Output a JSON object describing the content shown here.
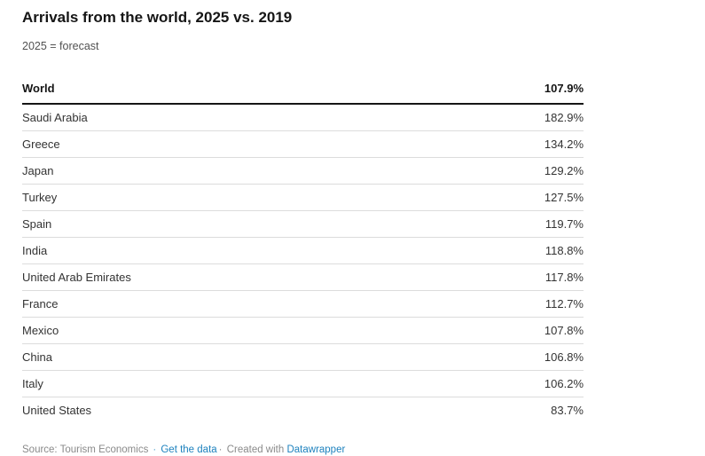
{
  "header": {
    "title": "Arrivals from the world, 2025 vs. 2019",
    "subtitle": "2025 = forecast"
  },
  "table": {
    "header": {
      "label": "World",
      "value": "107.9%"
    },
    "rows": [
      {
        "country": "Saudi Arabia",
        "value": "182.9%"
      },
      {
        "country": "Greece",
        "value": "134.2%"
      },
      {
        "country": "Japan",
        "value": "129.2%"
      },
      {
        "country": "Turkey",
        "value": "127.5%"
      },
      {
        "country": "Spain",
        "value": "119.7%"
      },
      {
        "country": "India",
        "value": "118.8%"
      },
      {
        "country": "United Arab Emirates",
        "value": "117.8%"
      },
      {
        "country": "France",
        "value": "112.7%"
      },
      {
        "country": "Mexico",
        "value": "107.8%"
      },
      {
        "country": "China",
        "value": "106.8%"
      },
      {
        "country": "Italy",
        "value": "106.2%"
      },
      {
        "country": "United States",
        "value": "83.7%"
      }
    ]
  },
  "footer": {
    "source": "Source: Tourism Economics",
    "sep1": "·",
    "get_data_label": "Get the data",
    "sep2": "·",
    "created_with": "Created with",
    "datawrapper_label": "Datawrapper"
  },
  "colors": {
    "link_blue": "#1e82be",
    "separator_blue": "#55a3cd",
    "header_border": "#161616",
    "row_border": "#dcdcdc",
    "title_text": "#151515",
    "body_text": "#333333",
    "footer_gray": "#8a8a8a",
    "background": "#ffffff"
  },
  "chart_data": {
    "type": "table",
    "title": "Arrivals from the world, 2025 vs. 2019",
    "subtitle": "2025 = forecast",
    "header_row": {
      "label": "World",
      "value_pct": 107.9
    },
    "categories": [
      "Saudi Arabia",
      "Greece",
      "Japan",
      "Turkey",
      "Spain",
      "India",
      "United Arab Emirates",
      "France",
      "Mexico",
      "China",
      "Italy",
      "United States"
    ],
    "values": [
      182.9,
      134.2,
      129.2,
      127.5,
      119.7,
      118.8,
      117.8,
      112.7,
      107.8,
      106.8,
      106.2,
      83.7
    ],
    "unit": "%",
    "source": "Tourism Economics",
    "legend": "none",
    "grid": "horizontal row separators only"
  }
}
